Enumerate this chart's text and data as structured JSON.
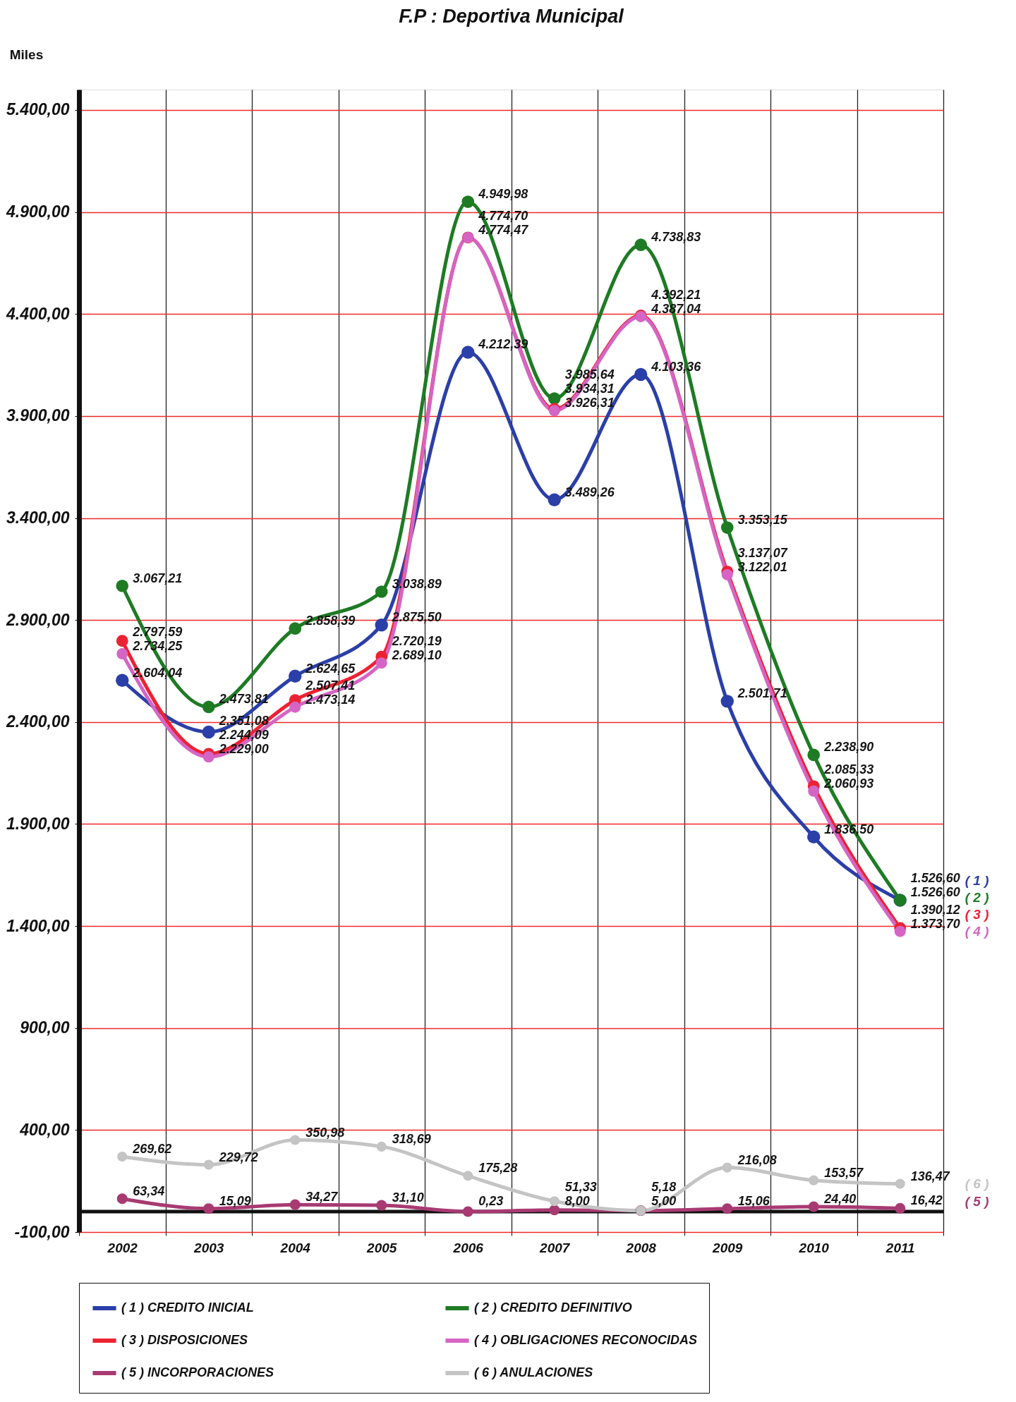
{
  "chart_data": {
    "type": "line",
    "title": "F.P : Deportiva Municipal",
    "ylabel": "Miles",
    "categories": [
      "2002",
      "2003",
      "2004",
      "2005",
      "2006",
      "2007",
      "2008",
      "2009",
      "2010",
      "2011"
    ],
    "ylim": [
      -100,
      5500
    ],
    "yticks": [
      {
        "value": -100,
        "label": "-100,00"
      },
      {
        "value": 400,
        "label": "400,00"
      },
      {
        "value": 900,
        "label": "900,00"
      },
      {
        "value": 1400,
        "label": "1.400,00"
      },
      {
        "value": 1900,
        "label": "1.900,00"
      },
      {
        "value": 2400,
        "label": "2.400,00"
      },
      {
        "value": 2900,
        "label": "2.900,00"
      },
      {
        "value": 3400,
        "label": "3.400,00"
      },
      {
        "value": 3900,
        "label": "3.900,00"
      },
      {
        "value": 4400,
        "label": "4.400,00"
      },
      {
        "value": 4900,
        "label": "4.900,00"
      },
      {
        "value": 5400,
        "label": "5.400,00"
      }
    ],
    "grid": true,
    "legend": "bottom",
    "marker": "circle",
    "line_style": "solid",
    "ref_lines": [
      {
        "axis": "y",
        "value": 0,
        "color": "#111111"
      }
    ],
    "annotations": [
      "( 1 )",
      "( 2 )",
      "( 3 )",
      "( 4 )",
      "( 5 )",
      "( 6 )"
    ],
    "series": [
      {
        "name": "( 1 ) CREDITO INICIAL",
        "color": "#2b3fa8",
        "values": [
          2604.04,
          2351.08,
          2624.65,
          2875.5,
          4212.39,
          3489.26,
          4103.36,
          2501.71,
          1836.5,
          1526.6
        ],
        "value_labels": [
          "2.604,04",
          "2.351,08",
          "2.624,65",
          "2.875,50",
          "4.212,39",
          "3.489,26",
          "4.103,36",
          "2.501,71",
          "1.836,50",
          "1.526,60"
        ]
      },
      {
        "name": "( 2 ) CREDITO DEFINITIVO",
        "color": "#1e7b24",
        "values": [
          3067.21,
          2473.81,
          2858.39,
          3038.89,
          4949.98,
          3985.64,
          4738.83,
          3353.15,
          2238.9,
          1526.6
        ],
        "value_labels": [
          "3.067,21",
          "2.473,81",
          "2.858,39",
          "3.038,89",
          "4.949,98",
          "3.985,64",
          "4.738,83",
          "3.353,15",
          "2.238,90",
          "1.526,60"
        ]
      },
      {
        "name": "( 3 ) DISPOSICIONES",
        "color": "#ec2233",
        "values": [
          2797.59,
          2244.09,
          2507.41,
          2720.19,
          4774.7,
          3934.31,
          4392.21,
          3137.07,
          2085.33,
          1390.12
        ],
        "value_labels": [
          "2.797,59",
          "2.244,09",
          "2.507,41",
          "2.720,19",
          "4.774,70",
          "3.934,31",
          "4.392,21",
          "3.137,07",
          "2.085,33",
          "1.390,12"
        ]
      },
      {
        "name": "( 4 ) OBLIGACIONES RECONOCIDAS",
        "color": "#d565c4",
        "values": [
          2734.25,
          2229.0,
          2473.14,
          2689.1,
          4774.47,
          3926.31,
          4387.04,
          3122.01,
          2060.93,
          1373.7
        ],
        "value_labels": [
          "2.734,25",
          "2.229,00",
          "2.473,14",
          "2.689,10",
          "4.774,47",
          "3.926,31",
          "4.387,04",
          "3.122,01",
          "2.060,93",
          "1.373,70"
        ]
      },
      {
        "name": "( 5 ) INCORPORACIONES",
        "color": "#a83a72",
        "values": [
          63.34,
          15.09,
          34.27,
          31.1,
          0.23,
          8.0,
          5.18,
          15.06,
          24.4,
          16.42
        ],
        "value_labels": [
          "63,34",
          "15,09",
          "34,27",
          "31,10",
          "0,23",
          "8,00",
          "5,18",
          "15,06",
          "24,40",
          "16,42"
        ]
      },
      {
        "name": "( 6 ) ANULACIONES",
        "color": "#c4c4c4",
        "values": [
          269.62,
          229.72,
          350.98,
          318.69,
          175.28,
          51.33,
          5.0,
          216.08,
          153.57,
          136.47
        ],
        "value_labels": [
          "269,62",
          "229,72",
          "350,98",
          "318,69",
          "175,28",
          "51,33",
          "5,00",
          "216,08",
          "153,57",
          "136,47"
        ]
      }
    ]
  }
}
